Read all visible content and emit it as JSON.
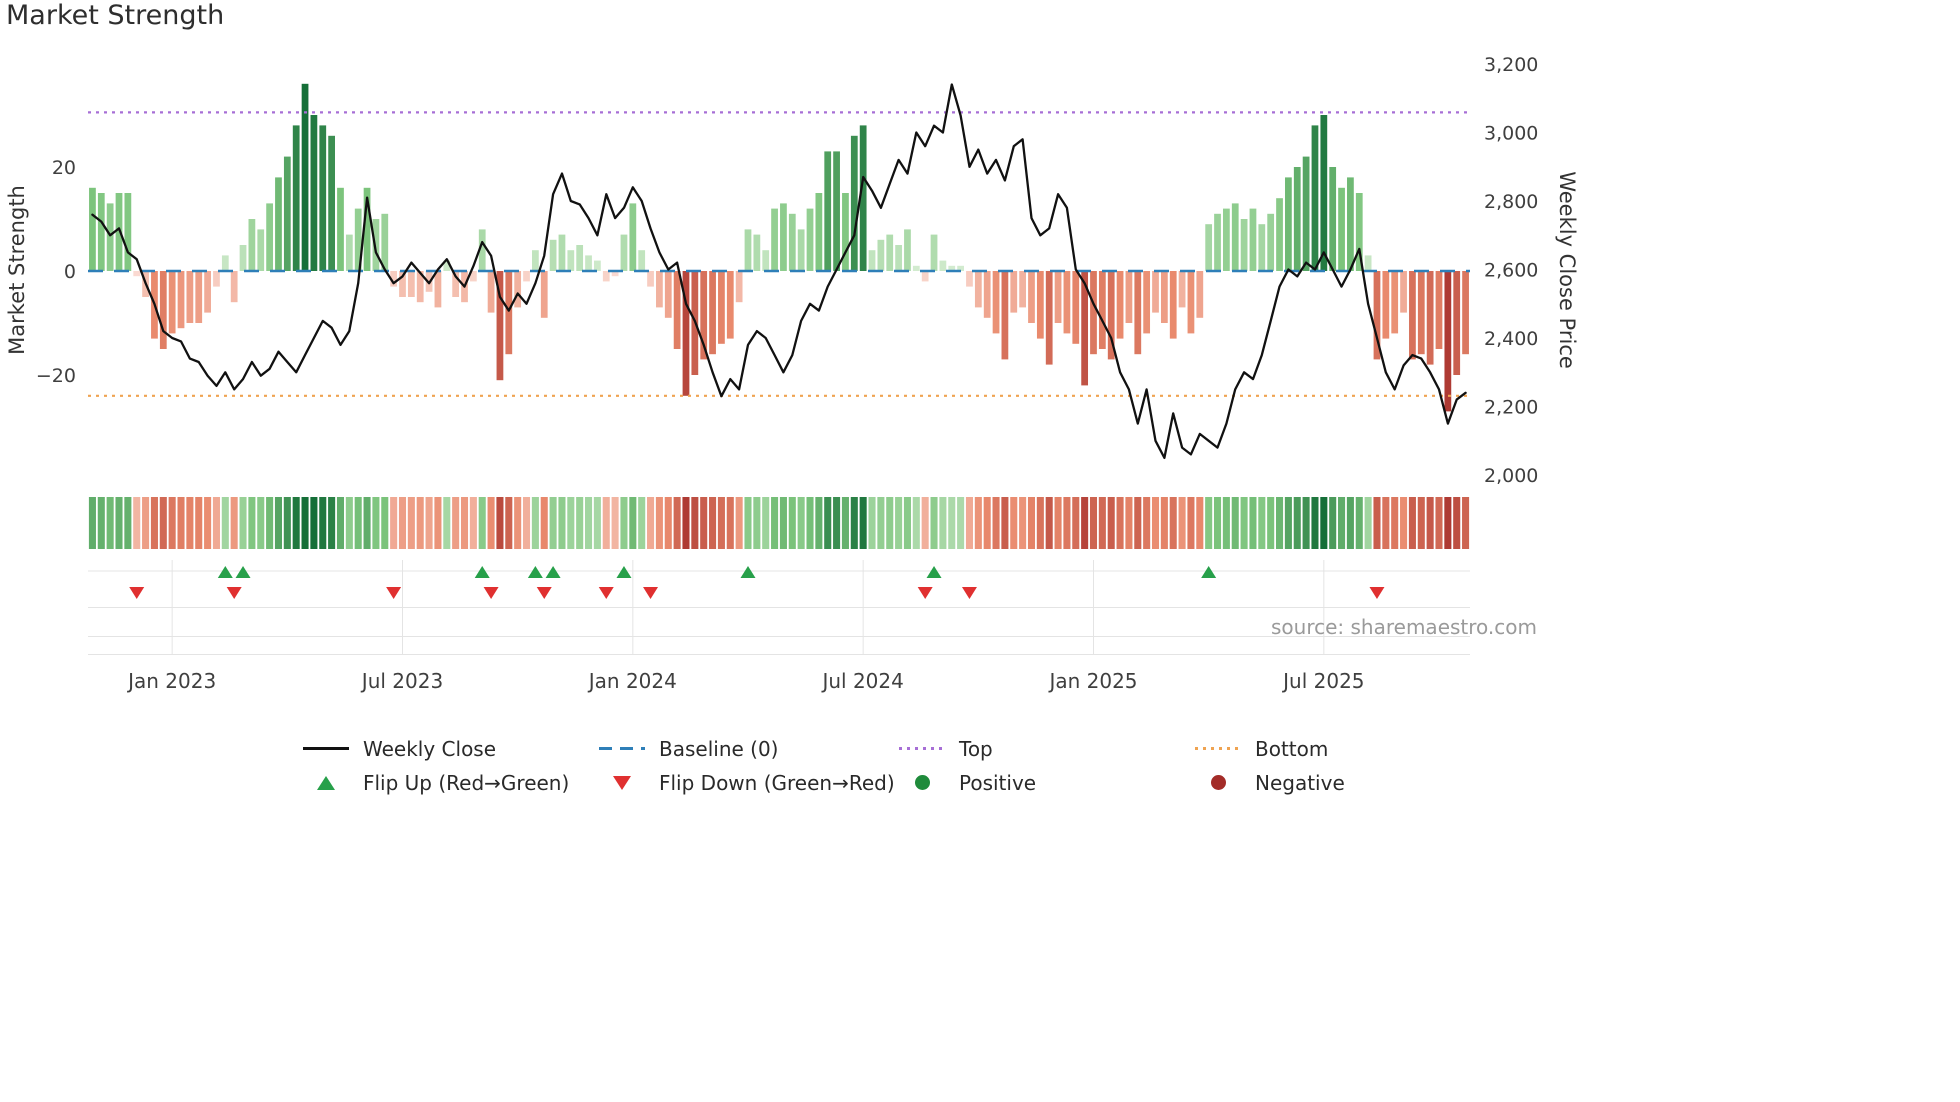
{
  "title": "Market Strength",
  "source_note": "source: sharemaestro.com",
  "axes": {
    "left_title": "Market Strength",
    "right_title": "Weekly Close Price",
    "left_ticks": [
      {
        "label": "20",
        "value": 20
      },
      {
        "label": "0",
        "value": 0
      },
      {
        "label": "−20",
        "value": -20
      }
    ],
    "right_ticks": [
      {
        "label": "3,200",
        "value": 3200
      },
      {
        "label": "3,000",
        "value": 3000
      },
      {
        "label": "2,800",
        "value": 2800
      },
      {
        "label": "2,600",
        "value": 2600
      },
      {
        "label": "2,400",
        "value": 2400
      },
      {
        "label": "2,200",
        "value": 2200
      },
      {
        "label": "2,000",
        "value": 2000
      }
    ],
    "x_ticks": [
      {
        "label": "Jan 2023",
        "week": 9
      },
      {
        "label": "Jul 2023",
        "week": 35
      },
      {
        "label": "Jan 2024",
        "week": 61
      },
      {
        "label": "Jul 2024",
        "week": 87
      },
      {
        "label": "Jan 2025",
        "week": 113
      },
      {
        "label": "Jul 2025",
        "week": 139
      }
    ]
  },
  "chart_data": {
    "type": "combo: weekly strength bars (left axis) + weekly close line (right axis) + heatmap strip + flip markers",
    "title": "Market Strength",
    "x": "week index (weekly observations spanning the x-tick labels Jan 2023 … Jul 2025)",
    "ylim_left": [
      -40,
      40
    ],
    "ylim_right": [
      2000,
      3200
    ],
    "baseline": 0,
    "top_level": 30.5,
    "bottom_level": -24,
    "series": [
      {
        "name": "Market Strength",
        "axis": "left",
        "type": "bar",
        "values": [
          16,
          15,
          13,
          15,
          15,
          -1,
          -5,
          -13,
          -15,
          -12,
          -11,
          -10,
          -10,
          -8,
          -3,
          3,
          -6,
          5,
          10,
          8,
          13,
          18,
          22,
          28,
          36,
          30,
          28,
          26,
          16,
          7,
          12,
          16,
          10,
          11,
          -3,
          -5,
          -5,
          -6,
          -4,
          -7,
          2,
          -5,
          -6,
          -2,
          8,
          -8,
          -21,
          -16,
          -7,
          -2,
          4,
          -9,
          6,
          7,
          4,
          5,
          3,
          2,
          -2,
          -1,
          7,
          13,
          4,
          -3,
          -7,
          -9,
          -15,
          -24,
          -20,
          -17,
          -16,
          -14,
          -13,
          -6,
          8,
          7,
          4,
          12,
          13,
          11,
          8,
          12,
          15,
          23,
          23,
          15,
          26,
          28,
          4,
          6,
          7,
          5,
          8,
          1,
          -2,
          7,
          2,
          1,
          1,
          -3,
          -7,
          -9,
          -12,
          -17,
          -8,
          -7,
          -10,
          -13,
          -18,
          -10,
          -12,
          -14,
          -22,
          -16,
          -15,
          -17,
          -13,
          -10,
          -16,
          -12,
          -8,
          -10,
          -13,
          -7,
          -12,
          -9,
          9,
          11,
          12,
          13,
          10,
          12,
          9,
          11,
          14,
          18,
          20,
          22,
          28,
          30,
          20,
          16,
          18,
          15,
          3,
          -17,
          -13,
          -12,
          -8,
          -17,
          -16,
          -18,
          -15,
          -27,
          -20,
          -16
        ]
      },
      {
        "name": "Weekly Close",
        "axis": "right",
        "type": "line",
        "values": [
          2760,
          2740,
          2700,
          2720,
          2650,
          2630,
          2560,
          2500,
          2420,
          2400,
          2390,
          2340,
          2330,
          2290,
          2260,
          2300,
          2250,
          2280,
          2330,
          2290,
          2310,
          2360,
          2330,
          2300,
          2350,
          2400,
          2450,
          2430,
          2380,
          2420,
          2560,
          2810,
          2650,
          2600,
          2560,
          2580,
          2620,
          2590,
          2560,
          2600,
          2630,
          2580,
          2550,
          2610,
          2680,
          2640,
          2520,
          2480,
          2530,
          2500,
          2560,
          2640,
          2820,
          2880,
          2800,
          2790,
          2750,
          2700,
          2820,
          2750,
          2780,
          2840,
          2800,
          2720,
          2650,
          2600,
          2620,
          2500,
          2450,
          2380,
          2300,
          2230,
          2280,
          2250,
          2380,
          2420,
          2400,
          2350,
          2300,
          2350,
          2450,
          2500,
          2480,
          2550,
          2600,
          2650,
          2700,
          2870,
          2830,
          2780,
          2850,
          2920,
          2880,
          3000,
          2960,
          3020,
          3000,
          3140,
          3050,
          2900,
          2950,
          2880,
          2920,
          2860,
          2960,
          2980,
          2750,
          2700,
          2720,
          2820,
          2780,
          2600,
          2560,
          2500,
          2450,
          2400,
          2300,
          2250,
          2150,
          2250,
          2100,
          2050,
          2180,
          2080,
          2060,
          2120,
          2100,
          2080,
          2150,
          2250,
          2300,
          2280,
          2350,
          2450,
          2550,
          2600,
          2580,
          2620,
          2600,
          2650,
          2600,
          2550,
          2600,
          2660,
          2500,
          2400,
          2300,
          2250,
          2320,
          2350,
          2340,
          2300,
          2250,
          2150,
          2220,
          2240
        ]
      }
    ],
    "heatmap": "strip below chart mirrors the Market Strength bar values (green positive / red negative, intensity by magnitude)",
    "flip_up_weeks": [
      15,
      17,
      44,
      50,
      52,
      60,
      74,
      95,
      126
    ],
    "flip_down_weeks": [
      5,
      16,
      34,
      45,
      51,
      58,
      63,
      94,
      99,
      145
    ]
  },
  "legend": {
    "items": [
      {
        "label": "Weekly Close",
        "swatch": "line",
        "color_key": "line"
      },
      {
        "label": "Baseline (0)",
        "swatch": "dash",
        "color_key": "baseline"
      },
      {
        "label": "Top",
        "swatch": "dot",
        "color_key": "top"
      },
      {
        "label": "Bottom",
        "swatch": "dot",
        "color_key": "bottom"
      },
      {
        "label": "Flip Up (Red→Green)",
        "swatch": "triup",
        "color_key": "flip_up"
      },
      {
        "label": "Flip Down (Green→Red)",
        "swatch": "tridown",
        "color_key": "flip_down"
      },
      {
        "label": "Positive",
        "swatch": "circle",
        "color_key": "positive_marker"
      },
      {
        "label": "Negative",
        "swatch": "circle",
        "color_key": "negative_marker"
      }
    ]
  },
  "colors": {
    "line": "#111111",
    "baseline": "#2e7fb8",
    "top": "#a76fd6",
    "bottom": "#efa351",
    "flip_up": "#27a04a",
    "flip_down": "#e03030",
    "positive_marker": "#1f8b3b",
    "negative_marker": "#a32c28",
    "green_stops": [
      "#d8eed4",
      "#7cc47c",
      "#156f38"
    ],
    "red_stops": [
      "#fbe0d9",
      "#e98a6d",
      "#ae3a33"
    ],
    "tick_text": "#3f3f3f",
    "grid": "#e4e4e4",
    "source_text": "#9a9a9a"
  }
}
